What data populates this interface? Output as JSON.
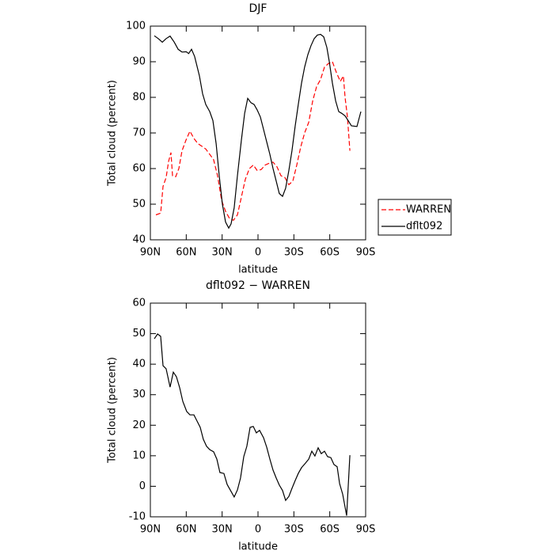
{
  "chart_data": [
    {
      "type": "line",
      "title": "DJF",
      "xlabel": "latitude",
      "ylabel": "Total cloud (percent)",
      "xlim": [
        90,
        -90
      ],
      "ylim": [
        40,
        100
      ],
      "xticks": [
        {
          "value": 90,
          "label": "90N"
        },
        {
          "value": 60,
          "label": "60N"
        },
        {
          "value": 30,
          "label": "30N"
        },
        0,
        {
          "value": -30,
          "label": "30S"
        },
        {
          "value": -60,
          "label": "60S"
        },
        {
          "value": -90,
          "label": "90S"
        }
      ],
      "yticks": [
        40,
        50,
        60,
        70,
        80,
        90,
        100
      ],
      "legend": "right",
      "series": [
        {
          "name": "WARREN",
          "color": "#ff0000",
          "linestyle": "dashed",
          "x": [
            85.4,
            81.4,
            79.4,
            76.8,
            74.8,
            72.8,
            71.5,
            68.8,
            66.2,
            63.5,
            60.2,
            56.9,
            53.6,
            50.3,
            47,
            43.7,
            40.4,
            37.1,
            33.8,
            30.4,
            27.1,
            23.8,
            20.5,
            17.2,
            13.9,
            10.6,
            7.2,
            3.9,
            0.7,
            -2.6,
            -6,
            -9.3,
            -12.6,
            -15.9,
            -19.2,
            -22.5,
            -25.8,
            -29.1,
            -32.4,
            -35.7,
            -39,
            -42.4,
            -45.7,
            -49,
            -52.3,
            -55.6,
            -58.9,
            -62.2,
            -65.5,
            -68.8,
            -71.4,
            -72.8,
            -74.8,
            -76.8
          ],
          "values": [
            47,
            47.5,
            55,
            57.5,
            62,
            64.5,
            58,
            57.7,
            60,
            65,
            68,
            70.5,
            68.5,
            67,
            66.3,
            65.5,
            64,
            62.5,
            58,
            51,
            48,
            46,
            45.5,
            47,
            52,
            57,
            60,
            61,
            59.5,
            59.7,
            61,
            61.5,
            61.8,
            60.5,
            58,
            57.5,
            55.5,
            56.5,
            61,
            66,
            70,
            73,
            79,
            83,
            85,
            88.5,
            89.5,
            90,
            87,
            84.5,
            86,
            80,
            74.5,
            65
          ]
        },
        {
          "name": "dflt092",
          "color": "#000000",
          "linestyle": "solid",
          "x": [
            86.7,
            83.4,
            80,
            76.8,
            73.5,
            70,
            66.8,
            63.5,
            60,
            58,
            55.6,
            53,
            49,
            46.3,
            43.7,
            40.4,
            37.7,
            35,
            32.4,
            29.8,
            27.1,
            24.5,
            22.5,
            19.9,
            17.2,
            13.9,
            11.2,
            8.6,
            5.9,
            3.3,
            0.7,
            -2,
            -4.6,
            -7.3,
            -9.9,
            -12.6,
            -15.2,
            -17.8,
            -20.5,
            -23.1,
            -25.8,
            -28.4,
            -31.1,
            -33.7,
            -36.4,
            -39,
            -41.7,
            -44.3,
            -47,
            -49.6,
            -52.3,
            -54.9,
            -57.6,
            -59.6,
            -62.2,
            -64.9,
            -67.5,
            -70.1,
            -72.8,
            -75.4,
            -78.1,
            -82.7,
            -86
          ],
          "values": [
            97.3,
            96.5,
            95.5,
            96.5,
            97.2,
            95.5,
            93.5,
            92.7,
            92.8,
            92.3,
            93.5,
            91.5,
            86,
            81,
            78,
            76,
            73.5,
            67,
            58,
            50,
            45,
            43.3,
            44.5,
            49,
            58,
            68,
            75.5,
            79.7,
            78.5,
            78,
            76.5,
            74.5,
            71,
            67.5,
            64,
            60,
            56.5,
            53,
            52.2,
            54.5,
            59.5,
            65,
            72,
            78,
            84,
            88.5,
            92,
            94.5,
            96.5,
            97.5,
            97.7,
            97,
            94,
            90,
            84,
            79,
            76,
            75.5,
            74.8,
            73.5,
            72,
            71.8,
            76
          ]
        }
      ]
    },
    {
      "type": "line",
      "title": "dflt092 − WARREN",
      "xlabel": "latitude",
      "ylabel": "Total cloud (percent)",
      "xlim": [
        90,
        -90
      ],
      "ylim": [
        -10,
        60
      ],
      "xticks": [
        {
          "value": 90,
          "label": "90N"
        },
        {
          "value": 60,
          "label": "60N"
        },
        {
          "value": 30,
          "label": "30N"
        },
        0,
        {
          "value": -30,
          "label": "30S"
        },
        {
          "value": -60,
          "label": "60S"
        },
        {
          "value": -90,
          "label": "90S"
        }
      ],
      "yticks": [
        -10,
        0,
        10,
        20,
        30,
        40,
        50,
        60
      ],
      "series": [
        {
          "color": "#000000",
          "linestyle": "solid",
          "x": [
            86.7,
            84,
            81.4,
            79.4,
            76.8,
            73.5,
            70.8,
            68.2,
            65.5,
            62.9,
            59.6,
            56.9,
            53.6,
            51,
            48.3,
            45.7,
            43,
            40.4,
            37.1,
            34.4,
            31.8,
            28.5,
            25.8,
            23.2,
            19.9,
            17.2,
            14.6,
            11.9,
            9.3,
            6.6,
            4,
            1.4,
            -1.3,
            -4.6,
            -7.3,
            -9.9,
            -12.6,
            -15.2,
            -17.8,
            -20.5,
            -23.1,
            -25.8,
            -28.4,
            -31.1,
            -33.7,
            -36.4,
            -39.7,
            -42.4,
            -45,
            -47.6,
            -50.3,
            -52.9,
            -55.6,
            -58.2,
            -60.9,
            -63.5,
            -66.2,
            -68.2,
            -70.8,
            -74.1,
            -76.8
          ],
          "values": [
            48.3,
            49.9,
            49.1,
            39.5,
            38.5,
            32.5,
            37.4,
            35.9,
            32.3,
            27.8,
            24.5,
            23.4,
            23.4,
            21.4,
            19.3,
            15.4,
            13.1,
            12,
            11.3,
            8.9,
            4.5,
            4.2,
            0.6,
            -1.2,
            -3.5,
            -1.2,
            2.7,
            9.7,
            13.1,
            19.3,
            19.6,
            17.5,
            18.3,
            15.9,
            12.8,
            8.9,
            5.3,
            2.7,
            0.4,
            -1.4,
            -4.6,
            -3.3,
            -0.7,
            1.9,
            4.2,
            6.1,
            7.6,
            8.9,
            11.5,
            9.9,
            12.6,
            10.7,
            11.5,
            9.7,
            9.4,
            7.1,
            6.4,
            0.9,
            -2.6,
            -9.6,
            10.2
          ]
        }
      ]
    }
  ]
}
